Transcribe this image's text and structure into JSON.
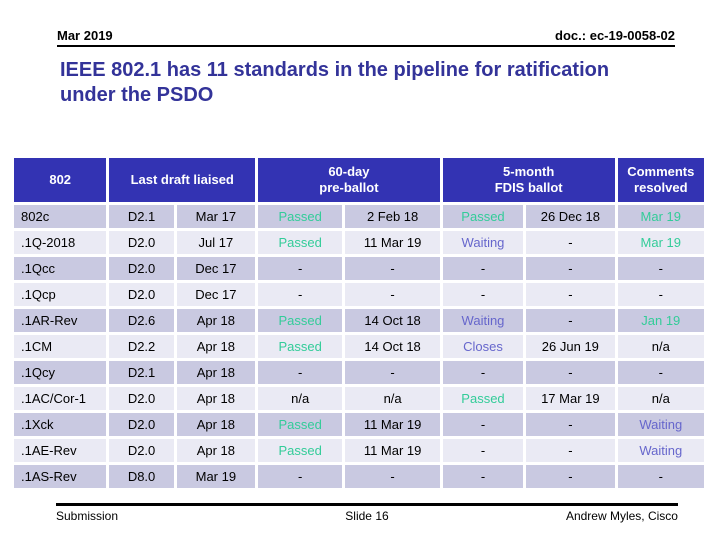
{
  "slide": {
    "header": {
      "date_label": "Mar 2019",
      "doc_label": "doc.: ec-19-0058-02"
    },
    "title": "IEEE 802.1 has 11 standards in the pipeline for ratification under the PSDO",
    "footer": {
      "left": "Submission",
      "center": "Slide 16",
      "right": "Andrew Myles, Cisco"
    }
  },
  "table": {
    "headers": [
      {
        "label": "802",
        "colspan": 1
      },
      {
        "label": "Last draft liaised",
        "colspan": 2
      },
      {
        "label": "60-day\npre-ballot",
        "colspan": 2
      },
      {
        "label": "5-month\nFDIS ballot",
        "colspan": 2
      },
      {
        "label": "Comments\nresolved",
        "colspan": 1
      }
    ],
    "rows": [
      {
        "cells": [
          {
            "v": "802c"
          },
          {
            "v": "D2.1"
          },
          {
            "v": "Mar 17"
          },
          {
            "v": "Passed",
            "s": "green"
          },
          {
            "v": "2 Feb 18"
          },
          {
            "v": "Passed",
            "s": "green"
          },
          {
            "v": "26 Dec 18"
          },
          {
            "v": "Mar 19",
            "s": "green"
          }
        ]
      },
      {
        "cells": [
          {
            "v": ".1Q-2018"
          },
          {
            "v": "D2.0"
          },
          {
            "v": "Jul 17"
          },
          {
            "v": "Passed",
            "s": "green"
          },
          {
            "v": "11 Mar 19"
          },
          {
            "v": "Waiting",
            "s": "purple"
          },
          {
            "v": "-"
          },
          {
            "v": "Mar 19",
            "s": "green"
          }
        ]
      },
      {
        "cells": [
          {
            "v": ".1Qcc"
          },
          {
            "v": "D2.0"
          },
          {
            "v": "Dec 17"
          },
          {
            "v": "-"
          },
          {
            "v": "-"
          },
          {
            "v": "-"
          },
          {
            "v": "-"
          },
          {
            "v": "-"
          }
        ]
      },
      {
        "cells": [
          {
            "v": ".1Qcp"
          },
          {
            "v": "D2.0"
          },
          {
            "v": "Dec 17"
          },
          {
            "v": "-"
          },
          {
            "v": "-"
          },
          {
            "v": "-"
          },
          {
            "v": "-"
          },
          {
            "v": "-"
          }
        ]
      },
      {
        "cells": [
          {
            "v": ".1AR-Rev"
          },
          {
            "v": "D2.6"
          },
          {
            "v": "Apr 18"
          },
          {
            "v": "Passed",
            "s": "green"
          },
          {
            "v": "14 Oct 18"
          },
          {
            "v": "Waiting",
            "s": "purple"
          },
          {
            "v": "-"
          },
          {
            "v": "Jan 19",
            "s": "green"
          }
        ]
      },
      {
        "cells": [
          {
            "v": ".1CM"
          },
          {
            "v": "D2.2"
          },
          {
            "v": "Apr 18"
          },
          {
            "v": "Passed",
            "s": "green"
          },
          {
            "v": "14 Oct 18"
          },
          {
            "v": "Closes",
            "s": "purple"
          },
          {
            "v": "26 Jun 19"
          },
          {
            "v": "n/a"
          }
        ]
      },
      {
        "cells": [
          {
            "v": ".1Qcy"
          },
          {
            "v": "D2.1"
          },
          {
            "v": "Apr 18"
          },
          {
            "v": "-"
          },
          {
            "v": "-"
          },
          {
            "v": "-"
          },
          {
            "v": "-"
          },
          {
            "v": "-"
          }
        ]
      },
      {
        "cells": [
          {
            "v": ".1AC/Cor-1"
          },
          {
            "v": "D2.0"
          },
          {
            "v": "Apr 18"
          },
          {
            "v": "n/a"
          },
          {
            "v": "n/a"
          },
          {
            "v": "Passed",
            "s": "green"
          },
          {
            "v": "17 Mar 19"
          },
          {
            "v": "n/a"
          }
        ]
      },
      {
        "cells": [
          {
            "v": ".1Xck"
          },
          {
            "v": "D2.0"
          },
          {
            "v": "Apr 18"
          },
          {
            "v": "Passed",
            "s": "green"
          },
          {
            "v": "11 Mar 19"
          },
          {
            "v": "-"
          },
          {
            "v": "-"
          },
          {
            "v": "Waiting",
            "s": "purple"
          }
        ]
      },
      {
        "cells": [
          {
            "v": ".1AE-Rev"
          },
          {
            "v": "D2.0"
          },
          {
            "v": "Apr 18"
          },
          {
            "v": "Passed",
            "s": "green"
          },
          {
            "v": "11 Mar 19"
          },
          {
            "v": "-"
          },
          {
            "v": "-"
          },
          {
            "v": "Waiting",
            "s": "purple"
          }
        ]
      },
      {
        "cells": [
          {
            "v": ".1AS-Rev"
          },
          {
            "v": "D8.0"
          },
          {
            "v": "Mar 19"
          },
          {
            "v": "-"
          },
          {
            "v": "-"
          },
          {
            "v": "-"
          },
          {
            "v": "-"
          },
          {
            "v": "-"
          }
        ]
      }
    ]
  },
  "colors": {
    "title_text": "#333399",
    "table_header_bg": "#3333b3",
    "table_header_text": "#ffffff",
    "row_odd_bg": "#c9c9e1",
    "row_even_bg": "#eaeaf4",
    "status_passed_green": "#33cc99",
    "status_waiting_purple": "#6666cc"
  }
}
